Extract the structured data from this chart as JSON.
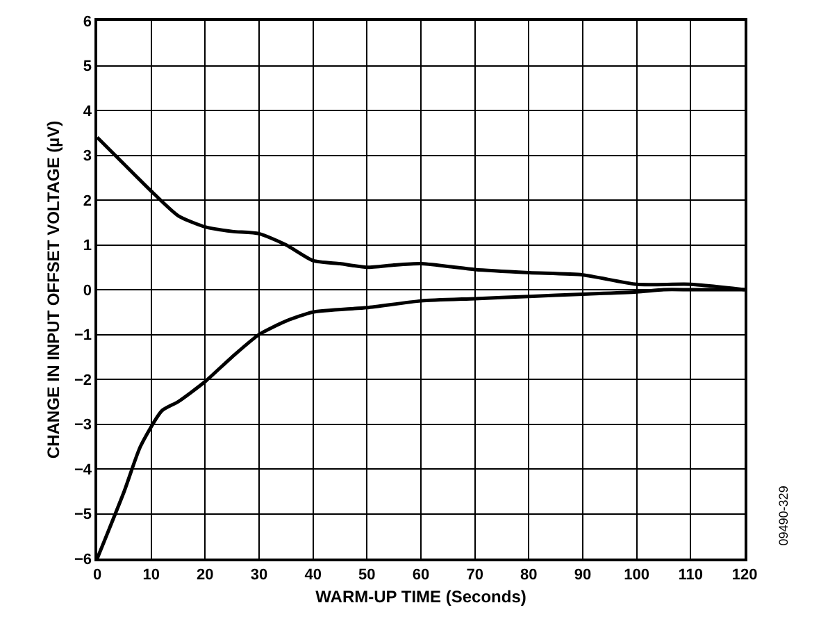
{
  "chart_data": {
    "type": "line",
    "xlabel": "WARM-UP TIME (Seconds)",
    "ylabel": "CHANGE IN INPUT OFFSET VOLTAGE (µV)",
    "annotations": [
      "09490-329"
    ],
    "xlim": [
      0,
      120
    ],
    "xticks": [
      0,
      10,
      20,
      30,
      40,
      50,
      60,
      70,
      80,
      90,
      100,
      110,
      120
    ],
    "ylim": [
      -6,
      6
    ],
    "yticks": [
      {
        "value": -6,
        "label": "−6"
      },
      {
        "value": -5,
        "label": "−5"
      },
      {
        "value": -4,
        "label": "−4"
      },
      {
        "value": -3,
        "label": "−3"
      },
      {
        "value": -2,
        "label": "−2"
      },
      {
        "value": -1,
        "label": "−1"
      },
      0,
      1,
      2,
      3,
      4,
      5,
      6
    ],
    "grid": true,
    "marker": "none",
    "line_style": "solid",
    "series": [
      {
        "color": "#000000",
        "x": [
          0,
          5,
          10,
          15,
          20,
          25,
          30,
          35,
          40,
          45,
          50,
          55,
          60,
          65,
          70,
          80,
          90,
          100,
          110,
          120
        ],
        "values": [
          3.4,
          2.8,
          2.2,
          1.65,
          1.4,
          1.3,
          1.25,
          1.0,
          0.65,
          0.58,
          0.5,
          0.55,
          0.58,
          0.52,
          0.45,
          0.38,
          0.33,
          0.12,
          0.12,
          0
        ]
      },
      {
        "color": "#000000",
        "x": [
          0,
          5,
          8,
          12,
          15,
          20,
          25,
          30,
          35,
          40,
          50,
          60,
          70,
          80,
          90,
          100,
          105,
          110,
          120
        ],
        "values": [
          -6,
          -4.5,
          -3.5,
          -2.7,
          -2.5,
          -2.05,
          -1.5,
          -1.0,
          -0.7,
          -0.5,
          -0.4,
          -0.25,
          -0.2,
          -0.15,
          -0.1,
          -0.05,
          0,
          0,
          0
        ]
      }
    ]
  }
}
